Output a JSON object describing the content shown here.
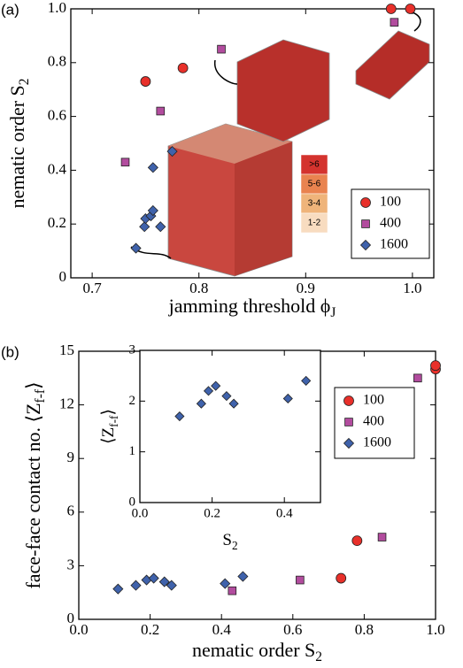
{
  "chart_data": [
    {
      "type": "scatter",
      "panel_label": "(a)",
      "xlabel": "jamming threshold ϕ",
      "xlabel_sub": "J",
      "ylabel": "nematic order S",
      "ylabel_sub": "2",
      "xlim": [
        0.68,
        1.02
      ],
      "ylim": [
        0,
        1.0
      ],
      "xticks": [
        0.7,
        0.8,
        0.9,
        {
          "value": 1.0,
          "label": "1.0"
        }
      ],
      "yticks": [
        0,
        0.2,
        0.4,
        0.6,
        0.8,
        {
          "value": 1.0,
          "label": "1.0"
        }
      ],
      "legend": "lower right",
      "colorbar_labels": [
        ">6",
        "5-6",
        "3-4",
        "1-2"
      ],
      "colorbar_colors": [
        "#d4332e",
        "#e9834f",
        "#efb47a",
        "#f8dcc0"
      ],
      "series": [
        {
          "name": "100",
          "marker": "circle",
          "color": "#e8302a",
          "x": [
            0.75,
            0.785,
            0.98,
            0.998
          ],
          "values": [
            0.73,
            0.78,
            1.0,
            1.0
          ]
        },
        {
          "name": "400",
          "marker": "square",
          "color": "#b24c9e",
          "x": [
            0.731,
            0.764,
            0.821,
            0.983
          ],
          "values": [
            0.43,
            0.62,
            0.85,
            0.95
          ]
        },
        {
          "name": "1600",
          "marker": "diamond",
          "color": "#3f62ab",
          "x": [
            0.741,
            0.749,
            0.764,
            0.75,
            0.755,
            0.757,
            0.757,
            0.775
          ],
          "values": [
            0.11,
            0.19,
            0.19,
            0.22,
            0.23,
            0.25,
            0.41,
            0.47
          ]
        }
      ]
    },
    {
      "type": "scatter",
      "panel_label": "(b)",
      "xlabel": "nematic order S",
      "xlabel_sub": "2",
      "ylabel": "face-face contact no. ⟨Z",
      "ylabel_sub": "f-f",
      "ylabel_end": "⟩",
      "xlim": [
        0,
        1.0
      ],
      "ylim": [
        0,
        15
      ],
      "xticks": [
        {
          "value": 0,
          "label": "0.0"
        },
        0.2,
        0.4,
        0.6,
        0.8,
        {
          "value": 1.0,
          "label": "1.0"
        }
      ],
      "yticks": [
        0,
        3,
        6,
        9,
        12,
        15
      ],
      "legend": "center right",
      "series": [
        {
          "name": "100",
          "marker": "circle",
          "color": "#e8302a",
          "x": [
            0.735,
            0.78,
            1.0,
            1.0
          ],
          "values": [
            2.3,
            4.4,
            14.0,
            14.2
          ]
        },
        {
          "name": "400",
          "marker": "square",
          "color": "#b24c9e",
          "x": [
            0.43,
            0.62,
            0.85,
            0.95
          ],
          "values": [
            1.6,
            2.2,
            4.6,
            13.5
          ]
        },
        {
          "name": "1600",
          "marker": "diamond",
          "color": "#3f62ab",
          "x": [
            0.11,
            0.16,
            0.19,
            0.21,
            0.24,
            0.26,
            0.41,
            0.46
          ],
          "values": [
            1.7,
            1.9,
            2.2,
            2.3,
            2.1,
            1.9,
            2.0,
            2.4
          ]
        }
      ]
    },
    {
      "type": "scatter",
      "xlabel": "S",
      "xlabel_sub": "2",
      "ylabel": "⟨Z",
      "ylabel_sub": "f-f",
      "ylabel_end": "⟩",
      "xlim": [
        0,
        0.5
      ],
      "ylim": [
        0,
        3
      ],
      "xticks": [
        {
          "value": 0,
          "label": "0.0"
        },
        0.2,
        0.4
      ],
      "yticks": [
        0,
        1,
        2,
        3
      ],
      "series": [
        {
          "name": "1600",
          "marker": "diamond",
          "color": "#3f62ab",
          "x": [
            0.11,
            0.17,
            0.19,
            0.21,
            0.24,
            0.26,
            0.41,
            0.46
          ],
          "values": [
            1.7,
            1.95,
            2.2,
            2.3,
            2.1,
            1.95,
            2.05,
            2.4
          ]
        }
      ]
    }
  ]
}
